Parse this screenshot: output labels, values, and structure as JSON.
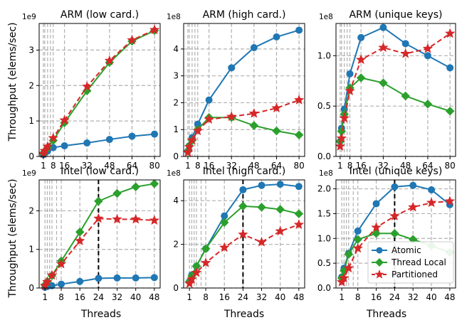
{
  "figure": {
    "ylabel": "Throughput (elems/sec)",
    "xlabel": "Threads",
    "legend_position": "lower-right of bottom-right panel"
  },
  "colors": {
    "Atomic": "#1f77b4",
    "Thread Local": "#2ca02c",
    "Partitioned": "#d62728",
    "grid": "#b0b0b0",
    "marker_line": "#000000"
  },
  "chart_data": [
    {
      "type": "line",
      "title": "ARM (low card.)",
      "multiplier": "1e9",
      "x_ticks": [
        "1",
        "8",
        "16",
        "32",
        "48",
        "64",
        "80"
      ],
      "x_tick_values": [
        1,
        8,
        16,
        32,
        48,
        64,
        80
      ],
      "xlim": [
        -2,
        84
      ],
      "ylim": [
        0,
        3.75
      ],
      "y_ticks": [
        0,
        1,
        2,
        3
      ],
      "y_tick_labels": [
        "0",
        "1",
        "2",
        "3"
      ],
      "vlines_dashed": [
        2,
        4,
        6
      ],
      "x": [
        1,
        2,
        4,
        8,
        16,
        32,
        48,
        64,
        80
      ],
      "series": [
        {
          "name": "Atomic",
          "marker": "circle",
          "linestyle": "solid",
          "values": [
            0.05,
            0.1,
            0.15,
            0.25,
            0.3,
            0.38,
            0.48,
            0.57,
            0.63
          ]
        },
        {
          "name": "Thread Local",
          "marker": "diamond",
          "linestyle": "solid",
          "values": [
            0.08,
            0.15,
            0.25,
            0.45,
            0.95,
            1.85,
            2.65,
            3.25,
            3.55
          ]
        },
        {
          "name": "Partitioned",
          "marker": "star",
          "linestyle": "dashed",
          "values": [
            0.08,
            0.16,
            0.28,
            0.52,
            1.02,
            1.97,
            2.7,
            3.28,
            3.57
          ]
        }
      ]
    },
    {
      "type": "line",
      "title": "ARM (high card.)",
      "multiplier": "1e8",
      "x_ticks": [
        "1",
        "8",
        "16",
        "32",
        "48",
        "64",
        "80"
      ],
      "x_tick_values": [
        1,
        8,
        16,
        32,
        48,
        64,
        80
      ],
      "xlim": [
        -2,
        84
      ],
      "ylim": [
        0,
        4.95
      ],
      "y_ticks": [
        0,
        1,
        2,
        3,
        4
      ],
      "y_tick_labels": [
        "0",
        "1",
        "2",
        "3",
        "4"
      ],
      "vlines_dashed": [
        2,
        4,
        6
      ],
      "x": [
        1,
        2,
        4,
        8,
        16,
        32,
        48,
        64,
        80
      ],
      "series": [
        {
          "name": "Atomic",
          "marker": "circle",
          "linestyle": "solid",
          "values": [
            0.2,
            0.4,
            0.7,
            1.2,
            2.1,
            3.3,
            4.05,
            4.45,
            4.7
          ]
        },
        {
          "name": "Thread Local",
          "marker": "diamond",
          "linestyle": "solid",
          "values": [
            0.2,
            0.4,
            0.6,
            1.0,
            1.45,
            1.45,
            1.15,
            0.95,
            0.8
          ]
        },
        {
          "name": "Partitioned",
          "marker": "star",
          "linestyle": "dashed",
          "values": [
            0.15,
            0.35,
            0.6,
            0.95,
            1.38,
            1.48,
            1.6,
            1.8,
            2.1
          ]
        }
      ]
    },
    {
      "type": "line",
      "title": "ARM (unique keys)",
      "multiplier": "1e8",
      "x_ticks": [
        "1",
        "8",
        "16",
        "32",
        "48",
        "64",
        "80"
      ],
      "x_tick_values": [
        1,
        8,
        16,
        32,
        48,
        64,
        80
      ],
      "xlim": [
        -2,
        84
      ],
      "ylim": [
        0,
        1.32
      ],
      "y_ticks": [
        0,
        0.5,
        1.0
      ],
      "y_tick_labels": [
        "0.0",
        "0.5",
        "1.0"
      ],
      "vlines_dashed": [
        2,
        4,
        6
      ],
      "x": [
        1,
        2,
        4,
        8,
        16,
        32,
        48,
        64,
        80
      ],
      "series": [
        {
          "name": "Atomic",
          "marker": "circle",
          "linestyle": "solid",
          "values": [
            0.15,
            0.28,
            0.47,
            0.82,
            1.18,
            1.28,
            1.12,
            1.0,
            0.88
          ]
        },
        {
          "name": "Thread Local",
          "marker": "diamond",
          "linestyle": "solid",
          "values": [
            0.15,
            0.25,
            0.42,
            0.68,
            0.78,
            0.73,
            0.6,
            0.52,
            0.45
          ]
        },
        {
          "name": "Partitioned",
          "marker": "star",
          "linestyle": "dashed",
          "values": [
            0.1,
            0.18,
            0.38,
            0.65,
            0.96,
            1.08,
            1.02,
            1.07,
            1.22
          ]
        }
      ]
    },
    {
      "type": "line",
      "title": "Intel (low card.)",
      "multiplier": "1e9",
      "x_ticks": [
        "1",
        "8",
        "16",
        "24",
        "32",
        "40",
        "48"
      ],
      "x_tick_values": [
        1,
        8,
        16,
        24,
        32,
        40,
        48
      ],
      "xlim": [
        -1.5,
        50.5
      ],
      "ylim": [
        0,
        2.8
      ],
      "y_ticks": [
        0,
        1,
        2
      ],
      "y_tick_labels": [
        "0",
        "1",
        "2"
      ],
      "vlines_dashed": [
        2,
        3,
        4,
        6
      ],
      "vline_bold": 24,
      "x": [
        1,
        2,
        4,
        8,
        16,
        24,
        32,
        40,
        48
      ],
      "series": [
        {
          "name": "Atomic",
          "marker": "circle",
          "linestyle": "solid",
          "values": [
            0.02,
            0.04,
            0.06,
            0.1,
            0.17,
            0.25,
            0.26,
            0.26,
            0.27
          ]
        },
        {
          "name": "Thread Local",
          "marker": "diamond",
          "linestyle": "solid",
          "values": [
            0.08,
            0.17,
            0.32,
            0.7,
            1.45,
            2.25,
            2.45,
            2.62,
            2.7
          ]
        },
        {
          "name": "Partitioned",
          "marker": "star",
          "linestyle": "dashed",
          "values": [
            0.06,
            0.16,
            0.33,
            0.62,
            1.22,
            1.8,
            1.78,
            1.78,
            1.75
          ]
        }
      ]
    },
    {
      "type": "line",
      "title": "Intel (high card.)",
      "multiplier": "1e8",
      "x_ticks": [
        "1",
        "8",
        "16",
        "24",
        "32",
        "40",
        "48"
      ],
      "x_tick_values": [
        1,
        8,
        16,
        24,
        32,
        40,
        48
      ],
      "xlim": [
        -1.5,
        50.5
      ],
      "ylim": [
        0,
        4.95
      ],
      "y_ticks": [
        0,
        2,
        4
      ],
      "y_tick_labels": [
        "0",
        "2",
        "4"
      ],
      "vlines_dashed": [
        2,
        3,
        4,
        6
      ],
      "vline_bold": 24,
      "x": [
        1,
        2,
        4,
        8,
        16,
        24,
        32,
        40,
        48
      ],
      "series": [
        {
          "name": "Atomic",
          "marker": "circle",
          "linestyle": "solid",
          "values": [
            0.3,
            0.6,
            1.0,
            1.8,
            3.3,
            4.5,
            4.7,
            4.75,
            4.65
          ]
        },
        {
          "name": "Thread Local",
          "marker": "diamond",
          "linestyle": "solid",
          "values": [
            0.3,
            0.55,
            1.0,
            1.8,
            3.0,
            3.75,
            3.7,
            3.6,
            3.4
          ]
        },
        {
          "name": "Partitioned",
          "marker": "star",
          "linestyle": "dashed",
          "values": [
            0.2,
            0.4,
            0.7,
            1.15,
            1.85,
            2.45,
            2.1,
            2.6,
            2.9
          ]
        }
      ]
    },
    {
      "type": "line",
      "title": "Intel (unique keys)",
      "multiplier": "1e8",
      "x_ticks": [
        "1",
        "8",
        "16",
        "24",
        "32",
        "40",
        "48"
      ],
      "x_tick_values": [
        1,
        8,
        16,
        24,
        32,
        40,
        48
      ],
      "xlim": [
        -1.5,
        50.5
      ],
      "ylim": [
        0,
        2.18
      ],
      "y_ticks": [
        0,
        0.5,
        1.0,
        1.5,
        2.0
      ],
      "y_tick_labels": [
        "0.0",
        "0.5",
        "1.0",
        "1.5",
        "2.0"
      ],
      "vlines_dashed": [
        2,
        3,
        4,
        6
      ],
      "vline_bold": 24,
      "x": [
        1,
        2,
        4,
        8,
        16,
        24,
        32,
        40,
        48
      ],
      "series": [
        {
          "name": "Atomic",
          "marker": "circle",
          "linestyle": "solid",
          "values": [
            0.22,
            0.4,
            0.7,
            1.15,
            1.7,
            2.04,
            2.07,
            1.98,
            1.68
          ]
        },
        {
          "name": "Thread Local",
          "marker": "diamond",
          "linestyle": "solid",
          "values": [
            0.2,
            0.35,
            0.68,
            0.98,
            1.1,
            1.1,
            0.98,
            0.85,
            0.72
          ]
        },
        {
          "name": "Partitioned",
          "marker": "star",
          "linestyle": "dashed",
          "values": [
            0.12,
            0.2,
            0.4,
            0.8,
            1.22,
            1.45,
            1.63,
            1.72,
            1.75
          ]
        }
      ]
    }
  ]
}
